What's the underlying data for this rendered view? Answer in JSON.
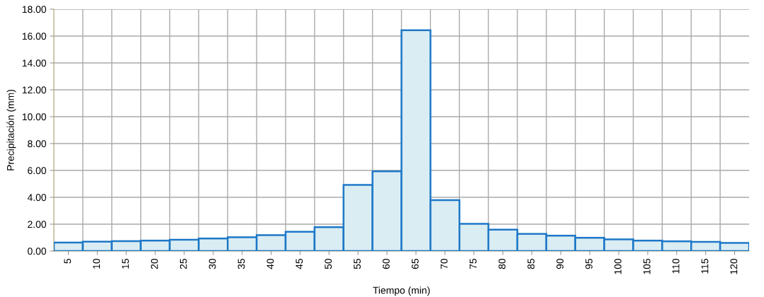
{
  "chart_data": {
    "type": "bar",
    "xlabel": "Tiempo (min)",
    "ylabel": "Precipitación (mm)",
    "categories": [
      "5",
      "10",
      "15",
      "20",
      "25",
      "30",
      "35",
      "40",
      "45",
      "50",
      "55",
      "60",
      "65",
      "70",
      "75",
      "80",
      "85",
      "90",
      "95",
      "100",
      "105",
      "110",
      "115",
      "120"
    ],
    "values": [
      0.63,
      0.7,
      0.74,
      0.78,
      0.84,
      0.93,
      1.03,
      1.19,
      1.43,
      1.78,
      4.92,
      5.93,
      16.44,
      3.79,
      2.02,
      1.59,
      1.27,
      1.14,
      0.99,
      0.87,
      0.78,
      0.73,
      0.68,
      0.61
    ],
    "color": "#daedf3",
    "ylim": [
      0,
      18
    ],
    "yticks": [
      {
        "value": 0,
        "label": "0.00"
      },
      {
        "value": 2,
        "label": "2.00"
      },
      {
        "value": 4,
        "label": "4.00"
      },
      {
        "value": 6,
        "label": "6.00"
      },
      {
        "value": 8,
        "label": "8.00"
      },
      {
        "value": 10,
        "label": "10.00"
      },
      {
        "value": 12,
        "label": "12.00"
      },
      {
        "value": 14,
        "label": "14.00"
      },
      {
        "value": 16,
        "label": "16.00"
      },
      {
        "value": 18,
        "label": "18.00"
      }
    ],
    "grid": true,
    "legend": false
  }
}
